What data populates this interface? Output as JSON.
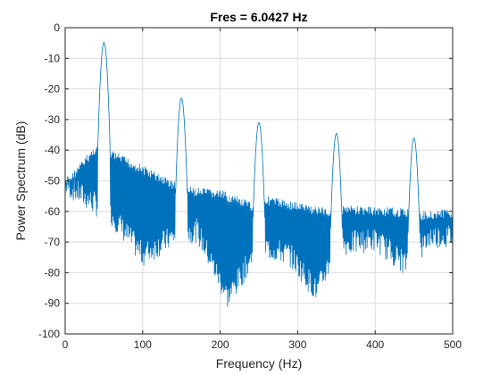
{
  "chart_data": {
    "type": "line",
    "title": "Fres = 6.0427 Hz",
    "xlabel": "Frequency (Hz)",
    "ylabel": "Power Spectrum (dB)",
    "xlim": [
      0,
      500
    ],
    "ylim": [
      -100,
      0
    ],
    "xticks": [
      0,
      100,
      200,
      300,
      400,
      500
    ],
    "yticks": [
      0,
      -10,
      -20,
      -30,
      -40,
      -50,
      -60,
      -70,
      -80,
      -90,
      -100
    ],
    "grid": true,
    "line_color": "#0072bd",
    "series": [
      {
        "peaks": [
          {
            "x": 50,
            "y": -4.8
          },
          {
            "x": 150,
            "y": -23
          },
          {
            "x": 250,
            "y": -31
          },
          {
            "x": 350,
            "y": -34.5
          },
          {
            "x": 450,
            "y": -36
          }
        ],
        "floor_upper": [
          {
            "x": 0,
            "y": -50
          },
          {
            "x": 40,
            "y": -38
          },
          {
            "x": 60,
            "y": -40
          },
          {
            "x": 100,
            "y": -45
          },
          {
            "x": 140,
            "y": -50
          },
          {
            "x": 160,
            "y": -52
          },
          {
            "x": 200,
            "y": -53
          },
          {
            "x": 240,
            "y": -57
          },
          {
            "x": 260,
            "y": -55
          },
          {
            "x": 300,
            "y": -57
          },
          {
            "x": 340,
            "y": -59
          },
          {
            "x": 360,
            "y": -58
          },
          {
            "x": 440,
            "y": -59
          },
          {
            "x": 460,
            "y": -60
          },
          {
            "x": 500,
            "y": -59
          }
        ],
        "floor_lower": [
          {
            "x": 0,
            "y": -55
          },
          {
            "x": 30,
            "y": -60
          },
          {
            "x": 60,
            "y": -65
          },
          {
            "x": 100,
            "y": -78
          },
          {
            "x": 140,
            "y": -72
          },
          {
            "x": 170,
            "y": -70
          },
          {
            "x": 210,
            "y": -92
          },
          {
            "x": 250,
            "y": -75
          },
          {
            "x": 290,
            "y": -78
          },
          {
            "x": 325,
            "y": -90
          },
          {
            "x": 350,
            "y": -75
          },
          {
            "x": 400,
            "y": -73
          },
          {
            "x": 445,
            "y": -82
          },
          {
            "x": 470,
            "y": -72
          },
          {
            "x": 500,
            "y": -72
          }
        ],
        "bin_spacing_hz": 1
      }
    ]
  }
}
